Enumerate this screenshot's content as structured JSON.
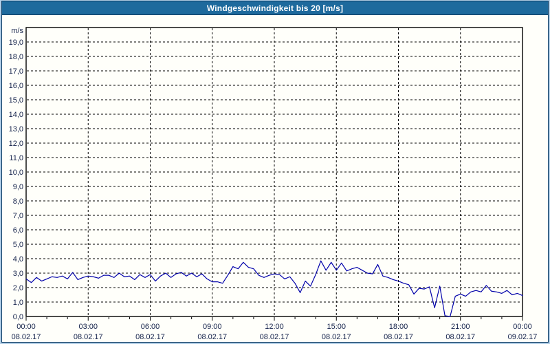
{
  "window": {
    "title": "Windgeschwindigkeit bis 20 [m/s]"
  },
  "colors": {
    "titlebar_bg": "#1e6a9d",
    "titlebar_text": "#ffffff",
    "frame": "#b3cfe8",
    "frame_line": "#0d3c62",
    "plot_bg": "#fffffa",
    "grid": "#000000",
    "axis": "#000000",
    "line": "#0000aa",
    "label_text": "#14224a"
  },
  "chart_data": {
    "type": "line",
    "title": "Windgeschwindigkeit bis 20 [m/s]",
    "ylabel": "m/s",
    "ylim": [
      0,
      20
    ],
    "ytick_step": 1,
    "ytick_labels": [
      "0,0",
      "1,0",
      "2,0",
      "3,0",
      "4,0",
      "5,0",
      "6,0",
      "7,0",
      "8,0",
      "9,0",
      "10,0",
      "11,0",
      "12,0",
      "13,0",
      "14,0",
      "15,0",
      "16,0",
      "17,0",
      "18,0",
      "19,0"
    ],
    "x_hours_range": [
      0,
      24
    ],
    "xtick_major_hours": 3,
    "xtick_minor_hours": 1,
    "xticks": [
      {
        "time": "00:00",
        "date": "08.02.17"
      },
      {
        "time": "03:00",
        "date": "08.02.17"
      },
      {
        "time": "06:00",
        "date": "08.02.17"
      },
      {
        "time": "09:00",
        "date": "08.02.17"
      },
      {
        "time": "12:00",
        "date": "08.02.17"
      },
      {
        "time": "15:00",
        "date": "08.02.17"
      },
      {
        "time": "18:00",
        "date": "08.02.17"
      },
      {
        "time": "21:00",
        "date": "08.02.17"
      },
      {
        "time": "00:00",
        "date": "09.02.17"
      }
    ],
    "grid": "dashed",
    "legend": "none",
    "series": [
      {
        "name": "Windgeschwindigkeit",
        "unit": "m/s",
        "start_time": "00:00",
        "interval_minutes": 15,
        "values": [
          2.6,
          2.35,
          2.7,
          2.45,
          2.6,
          2.75,
          2.7,
          2.8,
          2.6,
          3.05,
          2.55,
          2.7,
          2.8,
          2.75,
          2.65,
          2.85,
          2.85,
          2.7,
          3.0,
          2.75,
          2.8,
          2.55,
          2.9,
          2.7,
          2.9,
          2.45,
          2.8,
          3.0,
          2.7,
          2.95,
          3.05,
          2.8,
          3.0,
          2.75,
          2.95,
          2.6,
          2.4,
          2.4,
          2.3,
          2.85,
          3.45,
          3.3,
          3.75,
          3.4,
          3.3,
          2.85,
          2.7,
          2.85,
          2.95,
          2.9,
          2.6,
          2.75,
          2.3,
          1.65,
          2.45,
          2.1,
          2.9,
          3.85,
          3.2,
          3.75,
          3.2,
          3.7,
          3.15,
          3.3,
          3.4,
          3.2,
          3.0,
          2.95,
          3.6,
          2.8,
          2.7,
          2.55,
          2.45,
          2.3,
          2.2,
          1.55,
          1.95,
          1.9,
          2.05,
          0.6,
          2.1,
          0.05,
          0.0,
          1.4,
          1.55,
          1.4,
          1.7,
          1.8,
          1.7,
          2.15,
          1.75,
          1.7,
          1.6,
          1.8,
          1.5,
          1.6,
          1.45
        ]
      }
    ]
  }
}
